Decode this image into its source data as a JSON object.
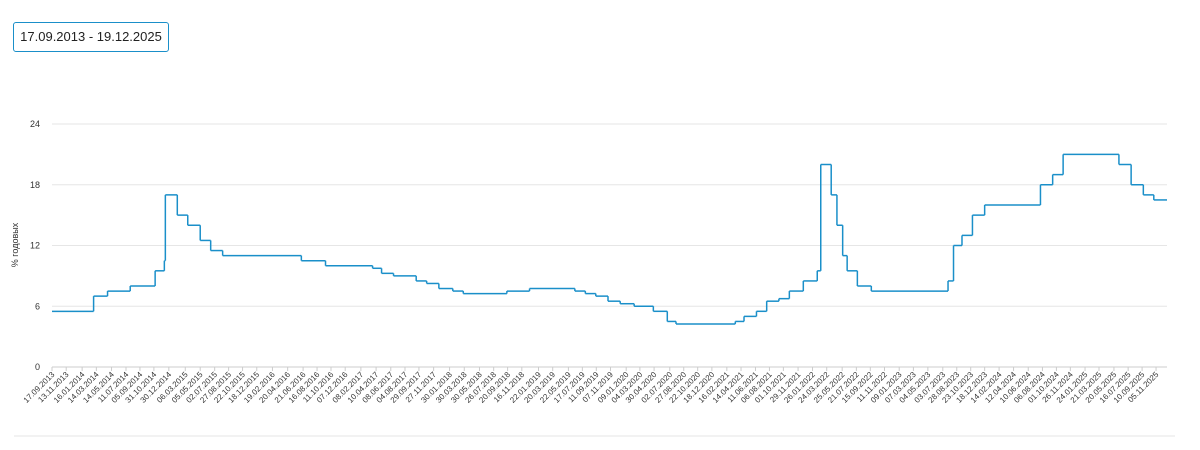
{
  "date_range": "17.09.2013 - 19.12.2025",
  "chart_data": {
    "type": "step",
    "y_label": "% годовых",
    "ylim": [
      0,
      24
    ],
    "yticks": [
      0,
      6,
      12,
      18,
      24
    ],
    "grid": true,
    "xlim": [
      "17.09.2013",
      "19.12.2025"
    ],
    "xticks": [
      "17.09.2013",
      "13.11.2013",
      "16.01.2014",
      "14.03.2014",
      "14.05.2014",
      "11.07.2014",
      "05.09.2014",
      "31.10.2014",
      "30.12.2014",
      "06.03.2015",
      "05.05.2015",
      "02.07.2015",
      "27.08.2015",
      "22.10.2015",
      "18.12.2015",
      "19.02.2016",
      "20.04.2016",
      "21.06.2016",
      "16.08.2016",
      "11.10.2016",
      "07.12.2016",
      "08.02.2017",
      "10.04.2017",
      "08.06.2017",
      "04.08.2017",
      "29.09.2017",
      "27.11.2017",
      "30.01.2018",
      "30.03.2018",
      "30.05.2018",
      "26.07.2018",
      "20.09.2018",
      "16.11.2018",
      "22.01.2019",
      "20.03.2019",
      "22.05.2019",
      "17.07.2019",
      "11.09.2019",
      "07.11.2019",
      "09.01.2020",
      "04.03.2020",
      "30.04.2020",
      "02.07.2020",
      "27.08.2020",
      "22.10.2020",
      "18.12.2020",
      "16.02.2021",
      "14.04.2021",
      "11.06.2021",
      "06.08.2021",
      "01.10.2021",
      "29.11.2021",
      "26.01.2022",
      "24.03.2022",
      "25.05.2022",
      "21.07.2022",
      "15.09.2022",
      "11.11.2022",
      "09.01.2023",
      "07.03.2023",
      "04.05.2023",
      "03.07.2023",
      "28.08.2023",
      "23.10.2023",
      "18.12.2023",
      "14.02.2024",
      "12.04.2024",
      "10.06.2024",
      "06.08.2024",
      "01.10.2024",
      "26.11.2024",
      "24.01.2025",
      "21.03.2025",
      "20.05.2025",
      "16.07.2025",
      "10.09.2025",
      "05.11.2025"
    ],
    "series": [
      {
        "color": "#1a8fc9",
        "x": [
          "17.09.2013",
          "03.03.2014",
          "28.04.2014",
          "28.07.2014",
          "05.11.2014",
          "12.12.2014",
          "16.12.2014",
          "02.02.2015",
          "16.03.2015",
          "05.05.2015",
          "16.06.2015",
          "03.08.2015",
          "14.06.2016",
          "19.09.2016",
          "27.03.2017",
          "02.05.2017",
          "19.06.2017",
          "18.09.2017",
          "30.10.2017",
          "18.12.2017",
          "12.02.2018",
          "26.03.2018",
          "17.09.2018",
          "17.12.2018",
          "17.06.2019",
          "29.07.2019",
          "09.09.2019",
          "28.10.2019",
          "16.12.2019",
          "10.02.2020",
          "27.04.2020",
          "22.06.2020",
          "27.07.2020",
          "22.03.2021",
          "26.04.2021",
          "15.06.2021",
          "26.07.2021",
          "13.09.2021",
          "25.10.2021",
          "20.12.2021",
          "14.02.2022",
          "28.02.2022",
          "11.04.2022",
          "04.05.2022",
          "27.05.2022",
          "14.06.2022",
          "25.07.2022",
          "19.09.2022",
          "24.07.2023",
          "15.08.2023",
          "18.09.2023",
          "30.10.2023",
          "18.12.2023",
          "29.07.2024",
          "16.09.2024",
          "28.10.2024",
          "09.06.2025",
          "28.07.2025",
          "15.09.2025",
          "27.10.2025"
        ],
        "values": [
          5.5,
          7,
          7.5,
          8,
          9.5,
          10.5,
          17,
          15,
          14,
          12.5,
          11.5,
          11,
          10.5,
          10,
          9.75,
          9.25,
          9,
          8.5,
          8.25,
          7.75,
          7.5,
          7.25,
          7.5,
          7.75,
          7.5,
          7.25,
          7,
          6.5,
          6.25,
          6,
          5.5,
          4.5,
          4.25,
          4.5,
          5,
          5.5,
          6.5,
          6.75,
          7.5,
          8.5,
          9.5,
          20,
          17,
          14,
          11,
          9.5,
          8,
          7.5,
          8.5,
          12,
          13,
          15,
          16,
          18,
          19,
          21,
          20,
          18,
          17,
          16.5
        ]
      }
    ]
  }
}
